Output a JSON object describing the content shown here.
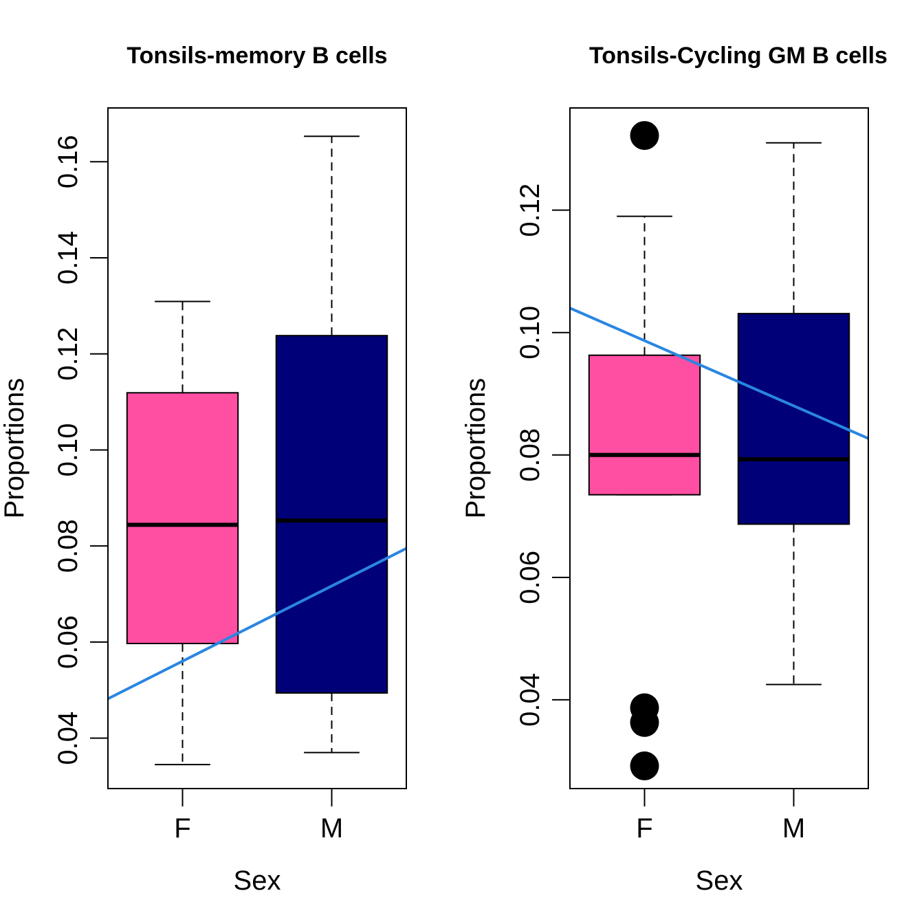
{
  "chart_data": [
    {
      "type": "boxplot",
      "title": "Tonsils-memory B cells",
      "xlabel": "Sex",
      "ylabel": "Proportions",
      "categories": [
        "F",
        "M"
      ],
      "ylim": [
        0.0295,
        0.1712
      ],
      "yticks": [
        0.04,
        0.06,
        0.08,
        0.1,
        0.12,
        0.14,
        0.16
      ],
      "ytick_labels": [
        "0.04",
        "0.06",
        "0.08",
        "0.10",
        "0.12",
        "0.14",
        "0.16"
      ],
      "boxes": [
        {
          "name": "F",
          "color": "#FF4FA3",
          "whisker_low": 0.0345,
          "q1": 0.0597,
          "median": 0.0844,
          "q3": 0.1119,
          "whisker_high": 0.1309,
          "outliers": []
        },
        {
          "name": "M",
          "color": "#000078",
          "whisker_low": 0.037,
          "q1": 0.0494,
          "median": 0.0853,
          "q3": 0.1238,
          "whisker_high": 0.1653,
          "outliers": []
        }
      ],
      "trend_line": {
        "color": "#2A86E0",
        "y_at_left_edge": 0.0482,
        "y_at_right_edge": 0.0795
      }
    },
    {
      "type": "boxplot",
      "title": "Tonsils-Cycling GM B cells",
      "xlabel": "Sex",
      "ylabel": "Proportions",
      "categories": [
        "F",
        "M"
      ],
      "ylim": [
        0.0255,
        0.1367
      ],
      "yticks": [
        0.04,
        0.06,
        0.08,
        0.1,
        0.12
      ],
      "ytick_labels": [
        "0.04",
        "0.06",
        "0.08",
        "0.10",
        "0.12"
      ],
      "boxes": [
        {
          "name": "F",
          "color": "#FF4FA3",
          "whisker_low": 0.0735,
          "q1": 0.0735,
          "median": 0.08,
          "q3": 0.0963,
          "whisker_high": 0.119,
          "outliers": [
            0.1322,
            0.0387,
            0.0363,
            0.0292
          ]
        },
        {
          "name": "M",
          "color": "#000078",
          "whisker_low": 0.0425,
          "q1": 0.0687,
          "median": 0.0793,
          "q3": 0.1031,
          "whisker_high": 0.131,
          "outliers": []
        }
      ],
      "trend_line": {
        "color": "#2A86E0",
        "y_at_left_edge": 0.104,
        "y_at_right_edge": 0.0827
      }
    }
  ]
}
